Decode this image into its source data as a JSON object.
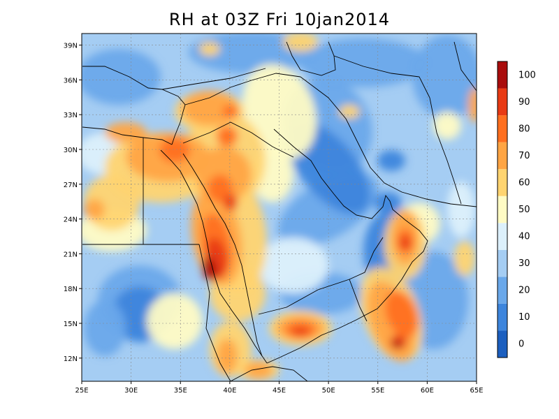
{
  "title": "RH at 03Z Fri 10jan2014",
  "map": {
    "lon_range": [
      25,
      65
    ],
    "lat_range": [
      10,
      40
    ],
    "x_ticks": [
      "25E",
      "30E",
      "35E",
      "40E",
      "45E",
      "50E",
      "55E",
      "60E",
      "65E"
    ],
    "y_ticks": [
      "12N",
      "15N",
      "18N",
      "21N",
      "24N",
      "27N",
      "30N",
      "33N",
      "36N",
      "39N"
    ],
    "grid": true
  },
  "colorbar": {
    "labels": [
      "0",
      "10",
      "20",
      "30",
      "40",
      "50",
      "60",
      "70",
      "80",
      "90",
      "100"
    ],
    "colors": [
      "#1c5fbf",
      "#3d85dc",
      "#6aa8ea",
      "#a5cdf3",
      "#dcf0fb",
      "#fffbc4",
      "#ffd470",
      "#ffa544",
      "#ff6f1f",
      "#e83a14",
      "#a90d0d"
    ]
  },
  "field_colors": {
    "dry_deep": "#1c5fbf",
    "dry": "#3d85dc",
    "dryish": "#6aa8ea",
    "light_blue": "#a5cdf3",
    "pale_cyan": "#dcf0fb",
    "pale_yellow": "#fffbc4",
    "yellow_orange": "#ffd470",
    "orange": "#ffa544",
    "orange_red": "#ff6f1f",
    "red": "#e83a14",
    "dark_red": "#a90d0d"
  }
}
